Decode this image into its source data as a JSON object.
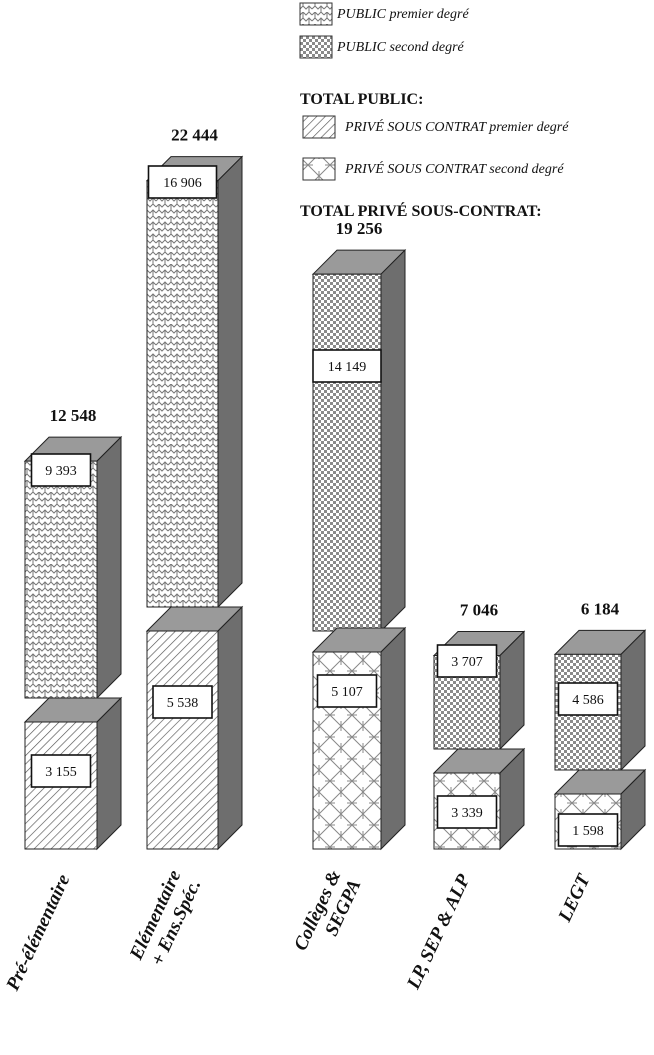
{
  "chart_data": {
    "type": "bar",
    "stacked": true,
    "three_d": true,
    "categories": [
      [
        "Pré-élémentaire"
      ],
      [
        "Elémentaire",
        "+ Ens.Spéc."
      ],
      [
        "Collèges &",
        "SEGPA"
      ],
      [
        "LP, SEP & ALP"
      ],
      [
        "LEGT"
      ]
    ],
    "totals": [
      "12 548",
      "22 444",
      "19 256",
      "7 046",
      "6 184"
    ],
    "legend": [
      {
        "key": "public_premier",
        "label": "PUBLIC premier degré",
        "pattern": "wave"
      },
      {
        "key": "public_second",
        "label": "PUBLIC second degré",
        "pattern": "check"
      },
      {
        "heading": "TOTAL PUBLIC:"
      },
      {
        "key": "prive_premier",
        "label": "PRIVÉ SOUS CONTRAT premier degré",
        "pattern": "diag"
      },
      {
        "key": "prive_second",
        "label": "PRIVÉ SOUS CONTRAT second degré",
        "pattern": "lattice"
      },
      {
        "heading": "TOTAL PRIVÉ SOUS-CONTRAT:"
      }
    ],
    "bars": [
      {
        "lower": {
          "value": 3155,
          "label": "3 155",
          "pattern": "diag"
        },
        "upper": {
          "value": 9393,
          "label": "9 393",
          "pattern": "wave"
        }
      },
      {
        "lower": {
          "value": 5538,
          "label": "5 538",
          "pattern": "diag"
        },
        "upper": {
          "value": 16906,
          "label": "16 906",
          "pattern": "wave"
        }
      },
      {
        "lower": {
          "value": 5107,
          "label": "5 107",
          "pattern": "lattice"
        },
        "upper": {
          "value": 14149,
          "label": "14 149",
          "pattern": "check"
        }
      },
      {
        "lower": {
          "value": 3339,
          "label": "3 339",
          "pattern": "lattice"
        },
        "upper": {
          "value": 3707,
          "label": "3 707",
          "pattern": "check"
        }
      },
      {
        "lower": {
          "value": 1598,
          "label": "1 598",
          "pattern": "lattice"
        },
        "upper": {
          "value": 4586,
          "label": "4 586",
          "pattern": "check"
        }
      }
    ]
  }
}
